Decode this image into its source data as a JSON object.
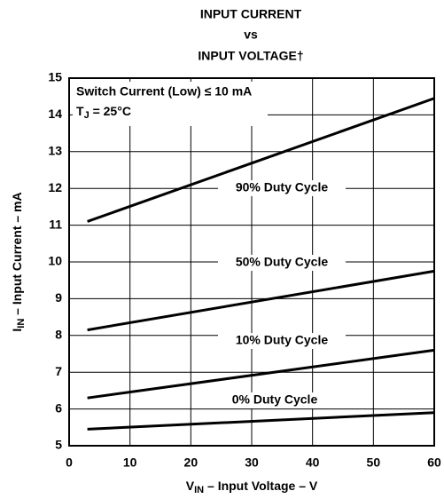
{
  "chart_data": {
    "type": "line",
    "title": [
      "INPUT CURRENT",
      "vs",
      "INPUT VOLTAGE†"
    ],
    "xlabel": {
      "symbol": "V",
      "subscript": "IN",
      "text": " – Input Voltage – V"
    },
    "ylabel": {
      "symbol": "I",
      "subscript": "IN",
      "text": " – Input Current – mA"
    },
    "annotations": [
      {
        "text": "Switch Current (Low) ≤ 10 mA"
      },
      {
        "symbol": "T",
        "subscript": "J",
        "text": " = 25°C"
      }
    ],
    "x": [
      3,
      60
    ],
    "series": [
      {
        "name": "90% Duty Cycle",
        "color": "#000000",
        "values": [
          11.1,
          14.45
        ]
      },
      {
        "name": "50% Duty Cycle",
        "color": "#000000",
        "values": [
          8.15,
          9.75
        ]
      },
      {
        "name": "10% Duty Cycle",
        "color": "#000000",
        "values": [
          6.3,
          7.6
        ]
      },
      {
        "name": "0% Duty Cycle",
        "color": "#000000",
        "values": [
          5.45,
          5.9
        ]
      }
    ],
    "xlim": [
      0,
      60
    ],
    "xticks": [
      0,
      10,
      20,
      30,
      40,
      50,
      60
    ],
    "ylim": [
      5,
      15
    ],
    "yticks": [
      5,
      6,
      7,
      8,
      9,
      10,
      11,
      12,
      13,
      14,
      15
    ],
    "grid": true
  }
}
